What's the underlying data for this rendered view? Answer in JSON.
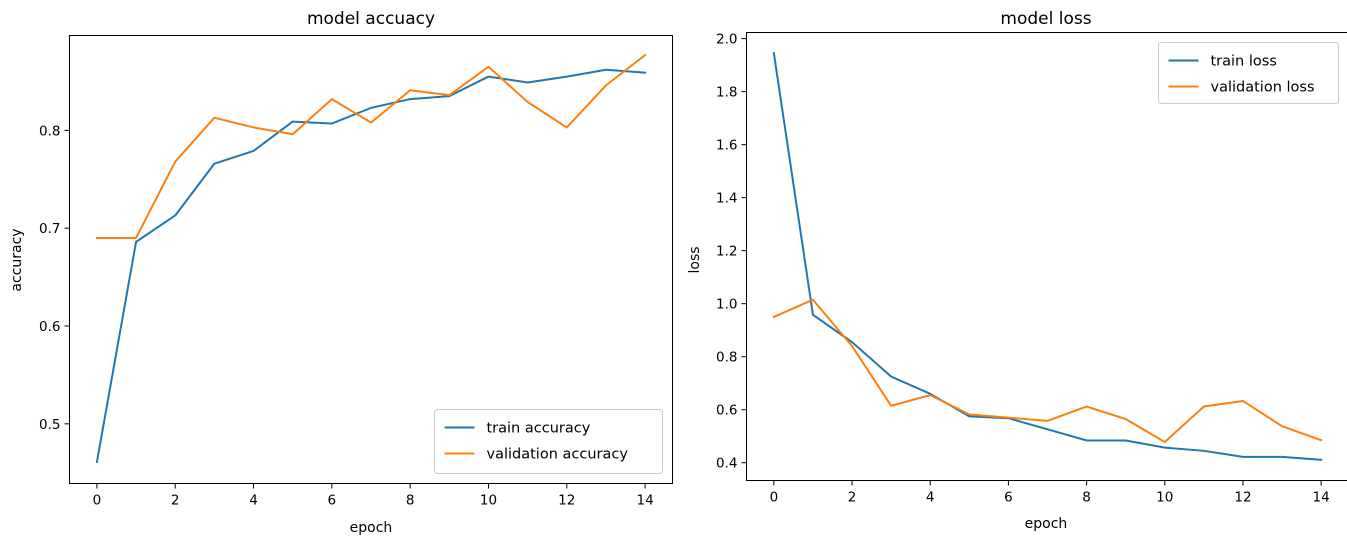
{
  "chart_data": [
    {
      "type": "line",
      "title": "model accuacy",
      "xlabel": "epoch",
      "ylabel": "accuracy",
      "xlim": [
        -0.7,
        14.7
      ],
      "ylim": [
        0.439,
        0.897
      ],
      "xticks": [
        0,
        2,
        4,
        6,
        8,
        10,
        12,
        14
      ],
      "yticks": [
        0.5,
        0.6,
        0.7,
        0.8
      ],
      "grid": false,
      "legend_position": "lower-right",
      "x": [
        0,
        1,
        2,
        3,
        4,
        5,
        6,
        7,
        8,
        9,
        10,
        11,
        12,
        13,
        14
      ],
      "series": [
        {
          "name": "train accuracy",
          "color": "#1f77b4",
          "values": [
            0.461,
            0.686,
            0.713,
            0.766,
            0.779,
            0.809,
            0.807,
            0.823,
            0.832,
            0.835,
            0.855,
            0.849,
            0.855,
            0.862,
            0.859
          ]
        },
        {
          "name": "validation accuracy",
          "color": "#ff7f0e",
          "values": [
            0.69,
            0.69,
            0.768,
            0.813,
            0.803,
            0.796,
            0.832,
            0.808,
            0.841,
            0.836,
            0.865,
            0.829,
            0.803,
            0.846,
            0.877
          ]
        }
      ]
    },
    {
      "type": "line",
      "title": "model loss",
      "xlabel": "epoch",
      "ylabel": "loss",
      "xlim": [
        -0.7,
        14.7
      ],
      "ylim": [
        0.333,
        2.023
      ],
      "xticks": [
        0,
        2,
        4,
        6,
        8,
        10,
        12,
        14
      ],
      "yticks": [
        0.4,
        0.6,
        0.8,
        1.0,
        1.2,
        1.4,
        1.6,
        1.8,
        2.0
      ],
      "grid": false,
      "legend_position": "upper-right",
      "x": [
        0,
        1,
        2,
        3,
        4,
        5,
        6,
        7,
        8,
        9,
        10,
        11,
        12,
        13,
        14
      ],
      "series": [
        {
          "name": "train loss",
          "color": "#1f77b4",
          "values": [
            1.945,
            0.958,
            0.855,
            0.725,
            0.66,
            0.575,
            0.568,
            0.526,
            0.484,
            0.484,
            0.457,
            0.445,
            0.422,
            0.422,
            0.411
          ]
        },
        {
          "name": "validation loss",
          "color": "#ff7f0e",
          "values": [
            0.95,
            1.015,
            0.84,
            0.615,
            0.655,
            0.582,
            0.57,
            0.558,
            0.612,
            0.565,
            0.478,
            0.612,
            0.633,
            0.538,
            0.485
          ]
        }
      ]
    }
  ]
}
